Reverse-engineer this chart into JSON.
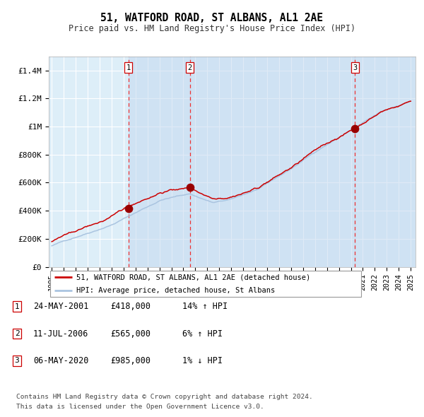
{
  "title": "51, WATFORD ROAD, ST ALBANS, AL1 2AE",
  "subtitle": "Price paid vs. HM Land Registry's House Price Index (HPI)",
  "legend_line1": "51, WATFORD ROAD, ST ALBANS, AL1 2AE (detached house)",
  "legend_line2": "HPI: Average price, detached house, St Albans",
  "sale_dates": [
    "24-MAY-2001",
    "11-JUL-2006",
    "06-MAY-2020"
  ],
  "sale_prices": [
    418000,
    565000,
    985000
  ],
  "sale_labels": [
    "1",
    "2",
    "3"
  ],
  "sale_pct": [
    "14% ↑ HPI",
    "6% ↑ HPI",
    "1% ↓ HPI"
  ],
  "footer_line1": "Contains HM Land Registry data © Crown copyright and database right 2024.",
  "footer_line2": "This data is licensed under the Open Government Licence v3.0.",
  "table_rows": [
    [
      "1",
      "24-MAY-2001",
      "£418,000",
      "14% ↑ HPI"
    ],
    [
      "2",
      "11-JUL-2006",
      "£565,000",
      "6% ↑ HPI"
    ],
    [
      "3",
      "06-MAY-2020",
      "£985,000",
      "1% ↓ HPI"
    ]
  ],
  "hpi_line_color": "#aac4e0",
  "price_line_color": "#cc0000",
  "dot_color": "#990000",
  "dashed_line_color": "#ee3333",
  "background_color": "#ffffff",
  "plot_bg_color": "#ddeef8",
  "grid_color": "#ffffff",
  "ylim": [
    0,
    1500000
  ],
  "yticks": [
    0,
    200000,
    400000,
    600000,
    800000,
    1000000,
    1200000,
    1400000
  ],
  "ytick_labels": [
    "£0",
    "£200K",
    "£400K",
    "£600K",
    "£800K",
    "£1M",
    "£1.2M",
    "£1.4M"
  ],
  "xstart_year": 1995,
  "xend_year": 2025
}
